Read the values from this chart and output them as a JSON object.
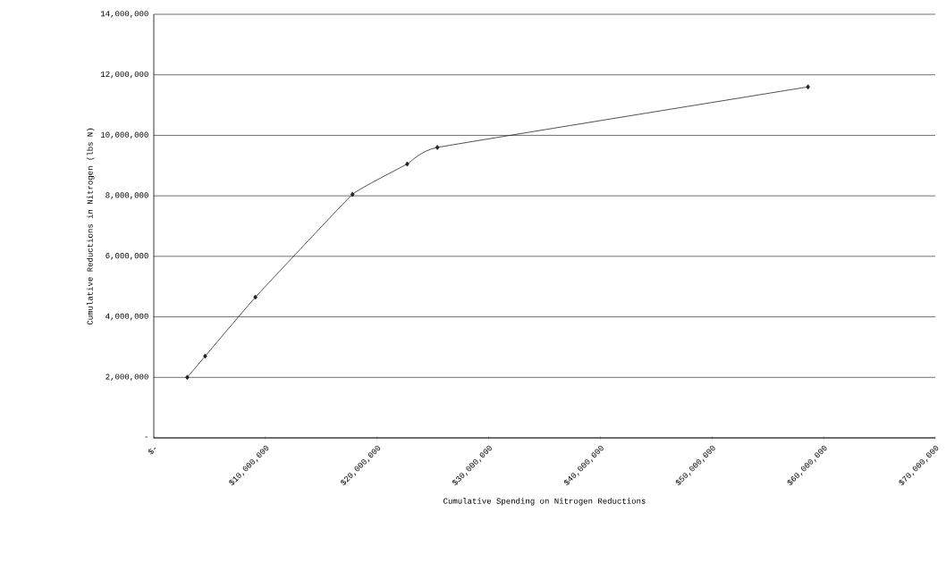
{
  "chart_data": {
    "type": "line",
    "xlabel": "Cumulative Spending on Nitrogen Reductions",
    "ylabel": "Cumulative Reductions in Nitrogen (lbs N)",
    "x": [
      3000000,
      4600000,
      9100000,
      17800000,
      22700000,
      25400000,
      58600000
    ],
    "values": [
      2000000,
      2700000,
      4650000,
      8050000,
      9050000,
      9600000,
      11600000
    ],
    "color": "#222222",
    "marker": "diamond",
    "xlim": [
      0,
      70000000
    ],
    "ylim": [
      0,
      14000000
    ],
    "xticks": [
      {
        "value": 0,
        "label": "$-"
      },
      {
        "value": 10000000,
        "label": "$10,000,000"
      },
      {
        "value": 20000000,
        "label": "$20,000,000"
      },
      {
        "value": 30000000,
        "label": "$30,000,000"
      },
      {
        "value": 40000000,
        "label": "$40,000,000"
      },
      {
        "value": 50000000,
        "label": "$50,000,000"
      },
      {
        "value": 60000000,
        "label": "$60,000,000"
      },
      {
        "value": 70000000,
        "label": "$70,000,000"
      }
    ],
    "yticks": [
      {
        "value": 0,
        "label": "-"
      },
      {
        "value": 2000000,
        "label": "2,000,000"
      },
      {
        "value": 4000000,
        "label": "4,000,000"
      },
      {
        "value": 6000000,
        "label": "6,000,000"
      },
      {
        "value": 8000000,
        "label": "8,000,000"
      },
      {
        "value": 10000000,
        "label": "10,000,000"
      },
      {
        "value": 12000000,
        "label": "12,000,000"
      },
      {
        "value": 14000000,
        "label": "14,000,000"
      }
    ],
    "grid": "y"
  }
}
